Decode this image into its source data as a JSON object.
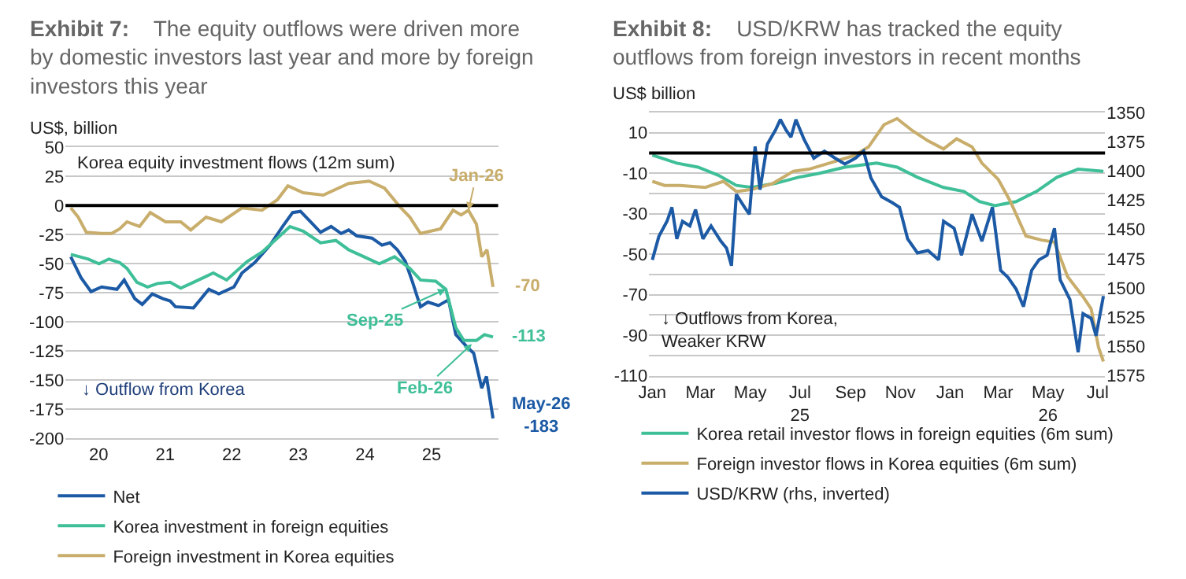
{
  "chart_data": [
    {
      "type": "line",
      "title": "Exhibit 7:",
      "subtitle": "The equity outflows were driven more by domestic investors last year and more by foreign investors this year",
      "ylabel": "US$, billion",
      "xlim": [
        "2020-01-01",
        "2026-07-01"
      ],
      "xticks": [
        {
          "value": "2020-07-01",
          "label": "20"
        },
        {
          "value": "2021-07-01",
          "label": "21"
        },
        {
          "value": "2022-07-01",
          "label": "22"
        },
        {
          "value": "2023-07-01",
          "label": "23"
        },
        {
          "value": "2024-07-01",
          "label": "24"
        },
        {
          "value": "2025-07-01",
          "label": "25"
        }
      ],
      "ylim": [
        -200,
        50
      ],
      "yticks": [
        -200,
        -175,
        -150,
        -125,
        -100,
        -75,
        -50,
        -25,
        0,
        25,
        50
      ],
      "grid": "y",
      "legend": "bottom",
      "ref_lines": [
        {
          "axis": "y",
          "value": 0,
          "label": null,
          "color": "#000000"
        }
      ],
      "series": [
        {
          "name": "Net",
          "color": "#1c5aa5",
          "x": [
            "2020-01-30",
            "2020-03-26",
            "2020-05-20",
            "2020-07-17",
            "2020-10-09",
            "2020-11-18",
            "2021-01-15",
            "2021-02-25",
            "2021-04-21",
            "2021-06-18",
            "2021-07-28",
            "2021-08-26",
            "2021-12-03",
            "2022-02-25",
            "2022-04-21",
            "2022-07-13",
            "2022-08-26",
            "2022-11-04",
            "2023-01-27",
            "2023-04-06",
            "2023-05-31",
            "2023-07-13",
            "2023-09-06",
            "2023-10-31",
            "2023-12-28",
            "2024-02-21",
            "2024-04-02",
            "2024-05-16",
            "2024-08-08",
            "2024-10-02",
            "2024-11-15",
            "2024-12-25",
            "2025-02-07",
            "2025-03-19",
            "2025-05-01",
            "2025-06-11",
            "2025-08-08",
            "2025-10-02",
            "2025-11-11",
            "2026-01-08",
            "2026-02-17",
            "2026-04-02",
            "2026-04-28",
            "2026-06-03"
          ],
          "values": [
            -44,
            -62,
            -74,
            -70,
            -72,
            -64,
            -80,
            -85,
            -76,
            -80,
            -82,
            -87,
            -88,
            -72,
            -76,
            -70,
            -58,
            -49,
            -34,
            -18,
            -6,
            -5,
            -14,
            -23,
            -18,
            -24,
            -21,
            -26,
            -28,
            -34,
            -32,
            -38,
            -48,
            -66,
            -87,
            -83,
            -86,
            -81,
            -111,
            -121,
            -127,
            -157,
            -147,
            -183
          ]
        },
        {
          "name": "Korea investment in foreign equities",
          "color": "#3fbf98",
          "x": [
            "2020-01-30",
            "2020-05-05",
            "2020-07-03",
            "2020-08-26",
            "2020-10-24",
            "2020-12-03",
            "2021-01-27",
            "2021-03-26",
            "2021-05-20",
            "2021-07-28",
            "2021-09-24",
            "2021-12-03",
            "2022-03-22",
            "2022-06-03",
            "2022-09-24",
            "2022-12-14",
            "2023-03-08",
            "2023-05-16",
            "2023-07-28",
            "2023-10-31",
            "2024-01-23",
            "2024-04-02",
            "2024-06-25",
            "2024-09-17",
            "2024-12-10",
            "2025-03-04",
            "2025-05-01",
            "2025-07-24",
            "2025-09-17",
            "2025-11-11",
            "2025-12-25",
            "2026-03-04",
            "2026-04-17",
            "2026-06-03"
          ],
          "values": [
            -42,
            -46,
            -50,
            -46,
            -49,
            -54,
            -66,
            -70,
            -67,
            -66,
            -71,
            -66,
            -58,
            -64,
            -48,
            -40,
            -28,
            -18,
            -22,
            -32,
            -30,
            -38,
            -44,
            -50,
            -44,
            -54,
            -64,
            -65,
            -72,
            -105,
            -116,
            -116,
            -111,
            -113
          ]
        },
        {
          "name": "Foreign investment in Korea equities",
          "color": "#c8ad6b",
          "x": [
            "2020-01-30",
            "2020-03-11",
            "2020-04-24",
            "2020-07-17",
            "2020-09-10",
            "2020-10-24",
            "2020-12-03",
            "2021-02-10",
            "2021-04-10",
            "2021-07-03",
            "2021-09-24",
            "2021-11-18",
            "2022-02-10",
            "2022-05-05",
            "2022-08-26",
            "2022-12-14",
            "2023-03-08",
            "2023-05-05",
            "2023-07-28",
            "2023-11-15",
            "2024-04-02",
            "2024-07-24",
            "2024-10-16",
            "2025-01-08",
            "2025-03-04",
            "2025-05-01",
            "2025-08-19",
            "2025-10-27",
            "2025-12-10",
            "2026-01-19",
            "2026-03-04",
            "2026-04-02",
            "2026-05-01",
            "2026-06-03"
          ],
          "values": [
            -2,
            -10,
            -23,
            -24,
            -24,
            -20,
            -14,
            -18,
            -6,
            -14,
            -14,
            -21,
            -10,
            -14,
            -2,
            -4,
            5,
            17,
            11,
            9,
            19,
            21,
            15,
            -1,
            -10,
            -24,
            -20,
            -4,
            -8,
            -4,
            -16,
            -44,
            -38,
            -70
          ]
        }
      ],
      "annotations": [
        "Korea equity investment flows (12m sum)",
        {
          "text": "Jan-26",
          "x": "2026-01-19",
          "y": -4
        },
        {
          "text": "Sep-25",
          "x": "2025-09-17",
          "y": -72
        },
        {
          "text": "Feb-26",
          "x": "2026-02-07",
          "y": -119
        },
        {
          "text": "May-26\n-183",
          "x": "2026-06-03",
          "y": -183
        },
        {
          "text": "-70",
          "x": "2026-06-03",
          "y": -70
        },
        {
          "text": "-113",
          "x": "2026-06-03",
          "y": -113
        },
        "↓ Outflow from Korea"
      ]
    },
    {
      "type": "line",
      "title": "Exhibit 8:",
      "subtitle": "USD/KRW has tracked the equity outflows from foreign investors in recent months",
      "ylabel": "US$ billion",
      "xlim": [
        "2024-12-28",
        "2026-07-10"
      ],
      "xticks": [
        {
          "value": "2025-01-01",
          "label": "Jan"
        },
        {
          "value": "2025-03-01",
          "label": "Mar"
        },
        {
          "value": "2025-05-01",
          "label": "May"
        },
        {
          "value": "2025-07-01",
          "label": "Jul\n25"
        },
        {
          "value": "2025-09-01",
          "label": "Sep"
        },
        {
          "value": "2025-11-01",
          "label": "Nov"
        },
        {
          "value": "2026-01-01",
          "label": "Jan"
        },
        {
          "value": "2026-03-01",
          "label": "Mar"
        },
        {
          "value": "2026-05-01",
          "label": "May\n26"
        },
        {
          "value": "2026-07-01",
          "label": "Jul"
        }
      ],
      "ylim": [
        -110,
        20
      ],
      "yticks": [
        {
          "value": -110,
          "label": "-110"
        },
        {
          "value": -100,
          "label": null
        },
        {
          "value": -90,
          "label": "-90"
        },
        {
          "value": -80,
          "label": null
        },
        {
          "value": -70,
          "label": "-70"
        },
        {
          "value": -60,
          "label": null
        },
        {
          "value": -50,
          "label": "-50"
        },
        {
          "value": -40,
          "label": null
        },
        {
          "value": -30,
          "label": "-30"
        },
        {
          "value": -20,
          "label": null
        },
        {
          "value": -10,
          "label": "-10"
        },
        {
          "value": 0,
          "label": null
        },
        {
          "value": 10,
          "label": "10"
        },
        {
          "value": 20,
          "label": null
        }
      ],
      "y2lim": [
        1575,
        1350
      ],
      "y2ticks": [
        1350,
        1375,
        1400,
        1425,
        1450,
        1475,
        1500,
        1525,
        1550,
        1575
      ],
      "grid": "y",
      "legend": "bottom",
      "ref_lines": [
        {
          "axis": "y",
          "value": 0,
          "label": null,
          "color": "#000000"
        }
      ],
      "series": [
        {
          "name": "Korea retail investor flows in foreign equities (6m sum)",
          "color": "#3fbf98",
          "x": [
            "2025-01-01",
            "2025-01-31",
            "2025-02-26",
            "2025-03-23",
            "2025-04-14",
            "2025-05-03",
            "2025-06-01",
            "2025-06-29",
            "2025-07-25",
            "2025-08-25",
            "2025-10-03",
            "2025-10-28",
            "2025-11-22",
            "2025-12-24",
            "2026-01-18",
            "2026-02-06",
            "2026-02-25",
            "2026-03-23",
            "2026-04-17",
            "2026-05-12",
            "2026-06-07",
            "2026-07-08"
          ],
          "values": [
            -1,
            -5,
            -7,
            -11,
            -16,
            -17,
            -15,
            -12,
            -10,
            -7,
            -5,
            -7,
            -12,
            -17,
            -19,
            -24,
            -26,
            -24,
            -19,
            -12,
            -8,
            -9
          ]
        },
        {
          "name": "Foreign investor flows in Korea equities (6m sum)",
          "color": "#c8ad6b",
          "x": [
            "2025-01-01",
            "2025-01-16",
            "2025-02-04",
            "2025-03-07",
            "2025-03-29",
            "2025-04-14",
            "2025-05-03",
            "2025-05-29",
            "2025-06-23",
            "2025-07-12",
            "2025-08-06",
            "2025-09-07",
            "2025-09-23",
            "2025-10-12",
            "2025-10-28",
            "2025-11-16",
            "2025-12-05",
            "2025-12-24",
            "2026-01-09",
            "2026-01-28",
            "2026-02-09",
            "2026-03-01",
            "2026-03-16",
            "2026-04-04",
            "2026-04-23",
            "2026-05-09",
            "2026-05-25",
            "2026-06-13",
            "2026-06-23",
            "2026-07-02",
            "2026-07-08"
          ],
          "values": [
            -14,
            -16,
            -16,
            -17,
            -14,
            -19,
            -18,
            -15,
            -9,
            -8,
            -5,
            -1,
            3,
            14,
            17,
            11,
            6,
            2,
            7,
            3,
            -5,
            -13,
            -24,
            -41,
            -43,
            -44,
            -61,
            -71,
            -77,
            -96,
            -103
          ]
        },
        {
          "name": "USD/KRW (rhs, inverted)",
          "color": "#1c5aa5",
          "axis": "y2",
          "x": [
            "2025-01-01",
            "2025-01-09",
            "2025-01-19",
            "2025-01-25",
            "2025-01-31",
            "2025-02-07",
            "2025-02-16",
            "2025-02-23",
            "2025-03-04",
            "2025-03-14",
            "2025-03-26",
            "2025-04-02",
            "2025-04-08",
            "2025-04-14",
            "2025-04-24",
            "2025-04-30",
            "2025-05-07",
            "2025-05-13",
            "2025-05-22",
            "2025-06-01",
            "2025-06-07",
            "2025-06-14",
            "2025-06-20",
            "2025-06-26",
            "2025-07-06",
            "2025-07-18",
            "2025-07-31",
            "2025-08-13",
            "2025-08-25",
            "2025-09-07",
            "2025-09-17",
            "2025-09-26",
            "2025-10-09",
            "2025-10-22",
            "2025-10-31",
            "2025-11-10",
            "2025-11-22",
            "2025-12-05",
            "2025-12-18",
            "2025-12-24",
            "2026-01-06",
            "2026-01-15",
            "2026-01-28",
            "2026-02-09",
            "2026-02-22",
            "2026-03-04",
            "2026-03-13",
            "2026-03-23",
            "2026-04-01",
            "2026-04-11",
            "2026-04-20",
            "2026-04-30",
            "2026-05-09",
            "2026-05-16",
            "2026-05-28",
            "2026-06-07",
            "2026-06-13",
            "2026-06-23",
            "2026-06-29",
            "2026-07-08"
          ],
          "values": [
            1476,
            1456,
            1443,
            1431,
            1458,
            1443,
            1447,
            1433,
            1458,
            1447,
            1460,
            1466,
            1481,
            1420,
            1431,
            1437,
            1379,
            1416,
            1377,
            1365,
            1356,
            1365,
            1371,
            1356,
            1373,
            1389,
            1383,
            1389,
            1394,
            1389,
            1383,
            1406,
            1422,
            1427,
            1431,
            1458,
            1470,
            1468,
            1476,
            1443,
            1449,
            1472,
            1437,
            1460,
            1431,
            1485,
            1491,
            1501,
            1516,
            1485,
            1476,
            1472,
            1449,
            1493,
            1510,
            1555,
            1522,
            1526,
            1541,
            1507
          ]
        }
      ],
      "annotations": [
        "↓ Outflows from Korea,\nWeaker KRW"
      ]
    }
  ]
}
